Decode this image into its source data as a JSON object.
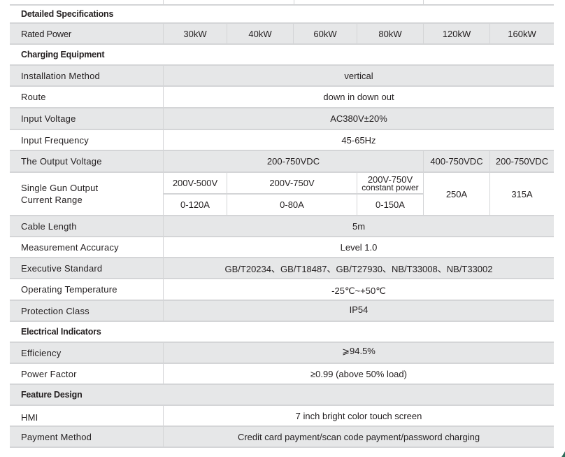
{
  "sections": {
    "detailed": "Detailed Specifications",
    "charging": "Charging Equipment",
    "electrical": "Electrical Indicators",
    "feature": "Feature Design"
  },
  "rated_power": {
    "label": "Rated Power",
    "values": [
      "30kW",
      "40kW",
      "60kW",
      "80kW",
      "120kW",
      "160kW"
    ]
  },
  "installation": {
    "label": "Installation Method",
    "value": "vertical"
  },
  "route": {
    "label": "Route",
    "value": "down in down out"
  },
  "input_voltage": {
    "label": "Input Voltage",
    "value": "AC380V±20%"
  },
  "input_frequency": {
    "label": "Input Frequency",
    "value": "45-65Hz"
  },
  "output_voltage": {
    "label": "The Output Voltage",
    "values": [
      "200-750VDC",
      "400-750VDC",
      "200-750VDC"
    ]
  },
  "single_gun": {
    "label_line1": "Single Gun Output",
    "label_line2": "Current Range",
    "voltage": [
      "200V-500V",
      "200V-750V",
      "200V-750V",
      "constant power"
    ],
    "current": [
      "0-120A",
      "0-80A",
      "0-150A",
      "250A",
      "315A"
    ]
  },
  "cable": {
    "label": "Cable Length",
    "value": "5m"
  },
  "measurement": {
    "label": "Measurement Accuracy",
    "value": "Level 1.0"
  },
  "executive": {
    "label": "Executive Standard",
    "value": "GB/T20234、GB/T18487、GB/T27930、NB/T33008、NB/T33002"
  },
  "temperature": {
    "label": "Operating Temperature",
    "value": "-25℃~+50℃"
  },
  "protection": {
    "label": "Protection Class",
    "value": "IP54"
  },
  "efficiency": {
    "label": "Efficiency",
    "value": "⩾94.5%"
  },
  "power_factor": {
    "label": "Power Factor",
    "value": "≥0.99 (above 50% load)"
  },
  "hmi": {
    "label": "HMI",
    "value": "7 inch bright color touch screen"
  },
  "payment": {
    "label": "Payment Method",
    "value": "Credit card payment/scan code payment/password charging"
  },
  "colors": {
    "row_gray": "#e6e7e8",
    "border": "#d4d5d7",
    "text": "#231f20",
    "corner_mark": "#2e6b5a"
  }
}
